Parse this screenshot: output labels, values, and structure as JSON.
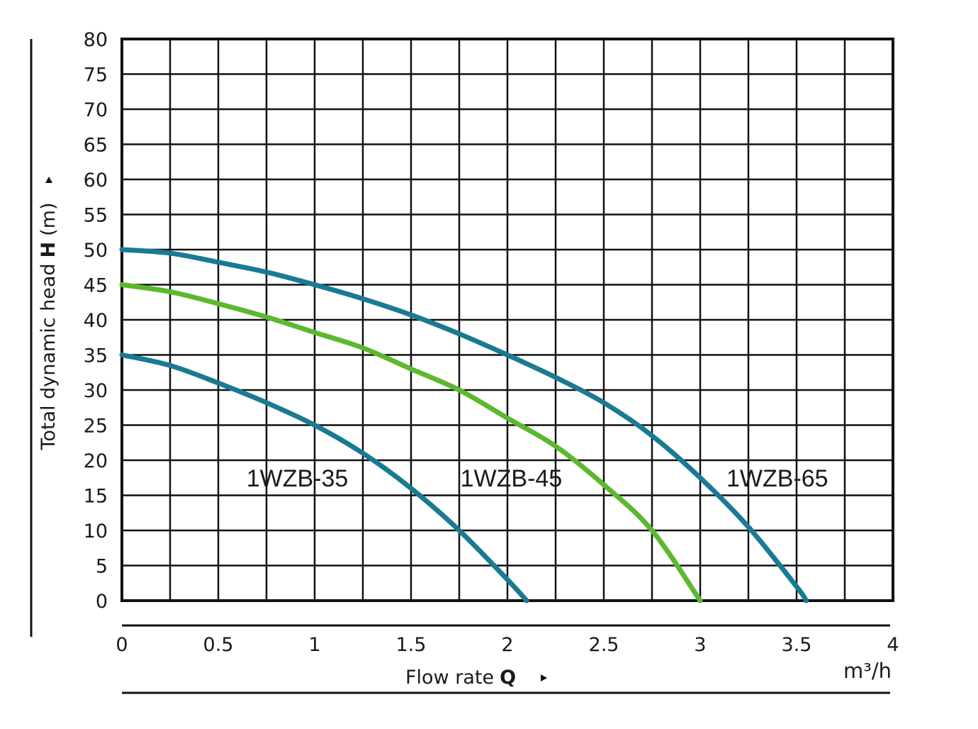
{
  "chart_data": {
    "type": "line",
    "xlim": [
      0,
      4
    ],
    "ylim": [
      0,
      80
    ],
    "x_ticks": [
      "0",
      "0.5",
      "1",
      "1.5",
      "2",
      "2.5",
      "3",
      "3.5",
      "4"
    ],
    "y_ticks": [
      "0",
      "5",
      "10",
      "15",
      "20",
      "25",
      "30",
      "35",
      "40",
      "45",
      "50",
      "55",
      "60",
      "65",
      "70",
      "75",
      "80"
    ],
    "x_grid_step": 0.25,
    "y_grid_step": 5,
    "grid": true,
    "xlabel_text": "Flow rate",
    "xlabel_symbol": "Q",
    "x_unit": "m³/h",
    "ylabel_text": "Total dynamic head",
    "ylabel_symbol": "H",
    "ylabel_unit": "(m)",
    "series": [
      {
        "name": "1WZB-35",
        "color": "#1a7a93",
        "x": [
          0,
          0.25,
          0.5,
          0.75,
          1.0,
          1.25,
          1.5,
          1.75,
          2.0,
          2.1
        ],
        "y": [
          35,
          33.5,
          31,
          28.2,
          25,
          21,
          16,
          10,
          3,
          0
        ]
      },
      {
        "name": "1WZB-45",
        "color": "#5cb82e",
        "x": [
          0,
          0.25,
          0.5,
          0.75,
          1.0,
          1.25,
          1.5,
          1.75,
          2.0,
          2.25,
          2.5,
          2.75,
          3.0
        ],
        "y": [
          45,
          44,
          42.3,
          40.4,
          38.2,
          36,
          33,
          30,
          26,
          22,
          16.5,
          10,
          0
        ]
      },
      {
        "name": "1WZB-65",
        "color": "#1a7a93",
        "x": [
          0,
          0.25,
          0.5,
          0.75,
          1.0,
          1.25,
          1.5,
          1.75,
          2.0,
          2.25,
          2.5,
          2.75,
          3.0,
          3.25,
          3.5,
          3.55
        ],
        "y": [
          50,
          49.5,
          48.2,
          46.8,
          45,
          43,
          40.7,
          38,
          35,
          31.8,
          28.2,
          23.5,
          17.5,
          10.5,
          2,
          0
        ]
      }
    ],
    "annotations": [
      {
        "text": "1WZB-35",
        "x": 0.91,
        "y": 17.5
      },
      {
        "text": "1WZB-45",
        "x": 2.02,
        "y": 17.5
      },
      {
        "text": "1WZB-65",
        "x": 3.4,
        "y": 17.5
      }
    ]
  }
}
